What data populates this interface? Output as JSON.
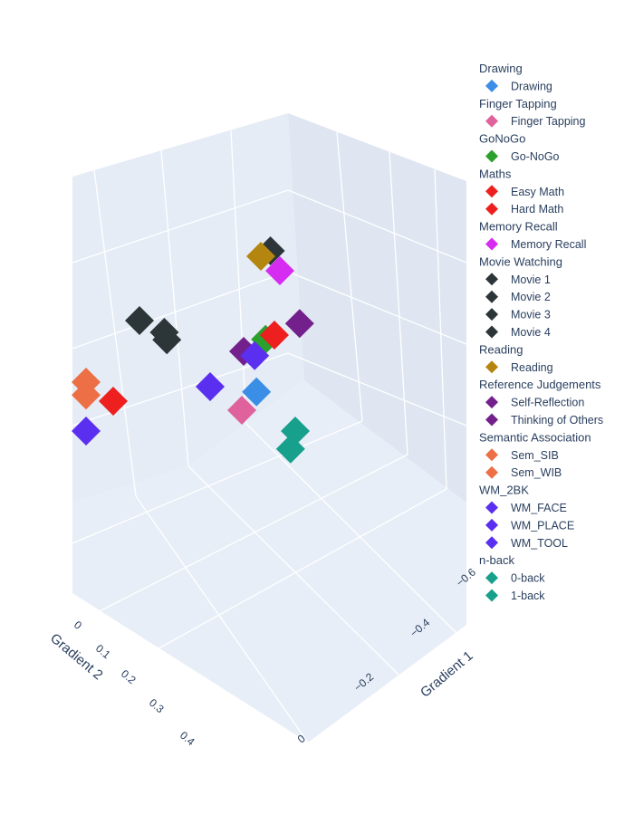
{
  "chart_data": {
    "type": "scatter",
    "axes": {
      "x": {
        "title": "Gradient 1",
        "ticks": [
          "−0.6",
          "−0.4",
          "−0.2",
          "0"
        ]
      },
      "y": {
        "title": "Gradient 2",
        "ticks": [
          "0",
          "0.1",
          "0.2",
          "0.3",
          "0.4"
        ]
      }
    },
    "grid": true,
    "legend_placement": "right",
    "marker_symbol": "diamond",
    "groups": [
      {
        "name": "Drawing",
        "series": [
          {
            "name": "Drawing",
            "color": "#3a8ee6",
            "x": -0.38,
            "y": 0.12,
            "z": 0.0
          }
        ]
      },
      {
        "name": "Finger Tapping",
        "series": [
          {
            "name": "Finger Tapping",
            "color": "#e0629c",
            "x": -0.55,
            "y": 0.0,
            "z": 0.1
          }
        ]
      },
      {
        "name": "GoNoGo",
        "series": [
          {
            "name": "Go-NoGo",
            "color": "#2ca02c",
            "x": -0.4,
            "y": 0.08,
            "z": 0.12
          }
        ]
      },
      {
        "name": "Maths",
        "series": [
          {
            "name": "Easy Math",
            "color": "#ee1f1f",
            "x": -0.3,
            "y": 0.15,
            "z": 0.05
          },
          {
            "name": "Hard Math",
            "color": "#ee1f1f",
            "x": -0.45,
            "y": 0.4,
            "z": -0.1
          }
        ]
      },
      {
        "name": "Memory Recall",
        "series": [
          {
            "name": "Memory Recall",
            "color": "#d62bf0",
            "x": -0.45,
            "y": 0.0,
            "z": 0.3
          }
        ]
      },
      {
        "name": "Movie Watching",
        "series": [
          {
            "name": "Movie 1",
            "color": "#2c3538",
            "x": -0.6,
            "y": 0.2,
            "z": 0.2
          },
          {
            "name": "Movie 2",
            "color": "#2c3538",
            "x": -0.42,
            "y": 0.05,
            "z": 0.3
          },
          {
            "name": "Movie 3",
            "color": "#2c3538",
            "x": -0.55,
            "y": 0.18,
            "z": 0.15
          },
          {
            "name": "Movie 4",
            "color": "#2c3538",
            "x": -0.48,
            "y": 0.25,
            "z": 0.1
          }
        ]
      },
      {
        "name": "Reading",
        "series": [
          {
            "name": "Reading",
            "color": "#b5860f",
            "x": -0.5,
            "y": 0.0,
            "z": 0.35
          }
        ]
      },
      {
        "name": "Reference Judgements",
        "series": [
          {
            "name": "Self-Reflection",
            "color": "#74208c",
            "x": -0.42,
            "y": -0.02,
            "z": 0.2
          },
          {
            "name": "Thinking of Others",
            "color": "#74208c",
            "x": -0.6,
            "y": -0.05,
            "z": 0.25
          }
        ]
      },
      {
        "name": "Semantic Association",
        "series": [
          {
            "name": "Sem_SIB",
            "color": "#ec6f45",
            "x": -0.75,
            "y": 0.35,
            "z": 0.1
          },
          {
            "name": "Sem_WIB",
            "color": "#ec6f45",
            "x": -0.72,
            "y": 0.38,
            "z": 0.05
          }
        ]
      },
      {
        "name": "WM_2BK",
        "series": [
          {
            "name": "WM_FACE",
            "color": "#5b2ff0",
            "x": -0.5,
            "y": 0.45,
            "z": -0.15
          },
          {
            "name": "WM_PLACE",
            "color": "#5b2ff0",
            "x": -0.25,
            "y": 0.35,
            "z": -0.15
          },
          {
            "name": "WM_TOOL",
            "color": "#5b2ff0",
            "x": -0.1,
            "y": 0.38,
            "z": -0.18
          }
        ]
      },
      {
        "name": "n-back",
        "series": [
          {
            "name": "0-back",
            "color": "#17a08c",
            "x": -0.4,
            "y": 0.02,
            "z": -0.05
          },
          {
            "name": "1-back",
            "color": "#17a08c",
            "x": -0.3,
            "y": 0.1,
            "z": -0.1
          }
        ]
      }
    ]
  }
}
